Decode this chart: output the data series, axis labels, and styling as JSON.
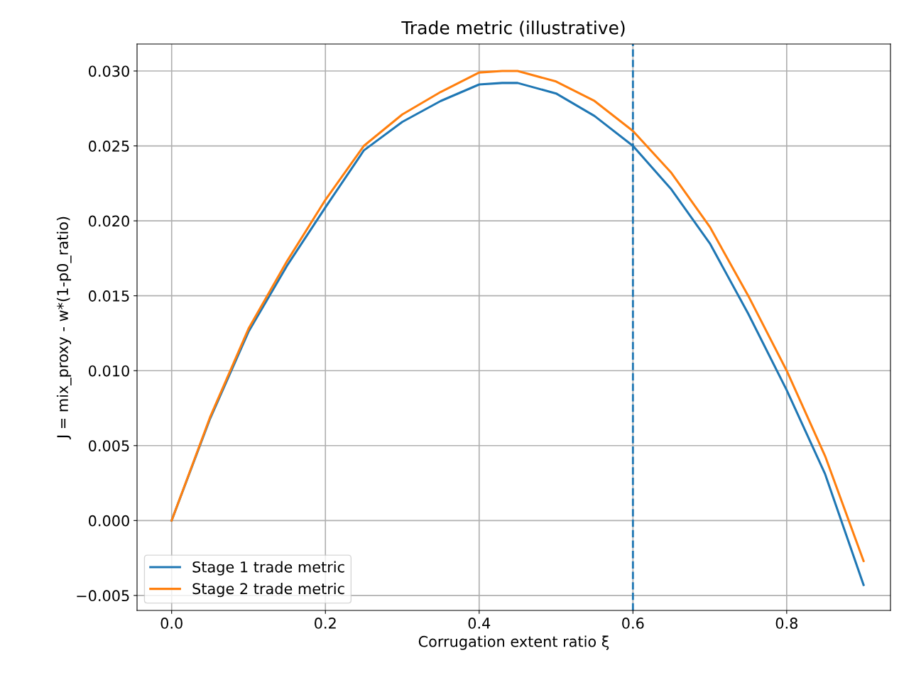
{
  "chart_data": {
    "type": "line",
    "title": "Trade metric (illustrative)",
    "xlabel": "Corrugation extent ratio ξ",
    "ylabel": "J = mix_proxy - w*(1-p0_ratio)",
    "x": [
      0,
      0.05,
      0.1,
      0.15,
      0.2,
      0.25,
      0.3,
      0.35,
      0.4,
      0.43,
      0.45,
      0.5,
      0.55,
      0.6,
      0.65,
      0.7,
      0.75,
      0.8,
      0.85,
      0.9
    ],
    "series": [
      {
        "name": "Stage 1 trade metric",
        "color": "#1f77b4",
        "values": [
          0,
          0.0068,
          0.0126,
          0.017,
          0.0209,
          0.0247,
          0.0266,
          0.028,
          0.0291,
          0.0292,
          0.0292,
          0.0285,
          0.027,
          0.025,
          0.0221,
          0.0185,
          0.0138,
          0.0087,
          0.0031,
          -0.0043
        ]
      },
      {
        "name": "Stage 2 trade metric",
        "color": "#ff7f0e",
        "values": [
          0,
          0.0069,
          0.0128,
          0.0173,
          0.0214,
          0.025,
          0.0271,
          0.0286,
          0.0299,
          0.03,
          0.03,
          0.0293,
          0.028,
          0.026,
          0.0232,
          0.0196,
          0.015,
          0.01,
          0.0043,
          -0.0027
        ]
      }
    ],
    "xlim": [
      -0.045,
      0.935
    ],
    "ylim": [
      -0.006,
      0.0318
    ],
    "xticks": [
      {
        "value": 0,
        "label": "0.0"
      },
      0.2,
      0.4,
      0.6,
      0.8
    ],
    "yticks": [
      {
        "value": -0.005,
        "label": "−0.005"
      },
      {
        "value": 0,
        "label": "0.000"
      },
      0.005,
      {
        "value": 0.01,
        "label": "0.010"
      },
      0.015,
      {
        "value": 0.02,
        "label": "0.020"
      },
      0.025,
      {
        "value": 0.03,
        "label": "0.030"
      }
    ],
    "ref_lines": [
      {
        "axis": "x",
        "value": 0.6,
        "color": "#1f77b4",
        "line_style": "dashed"
      }
    ],
    "grid": true,
    "legend": "lower left"
  }
}
